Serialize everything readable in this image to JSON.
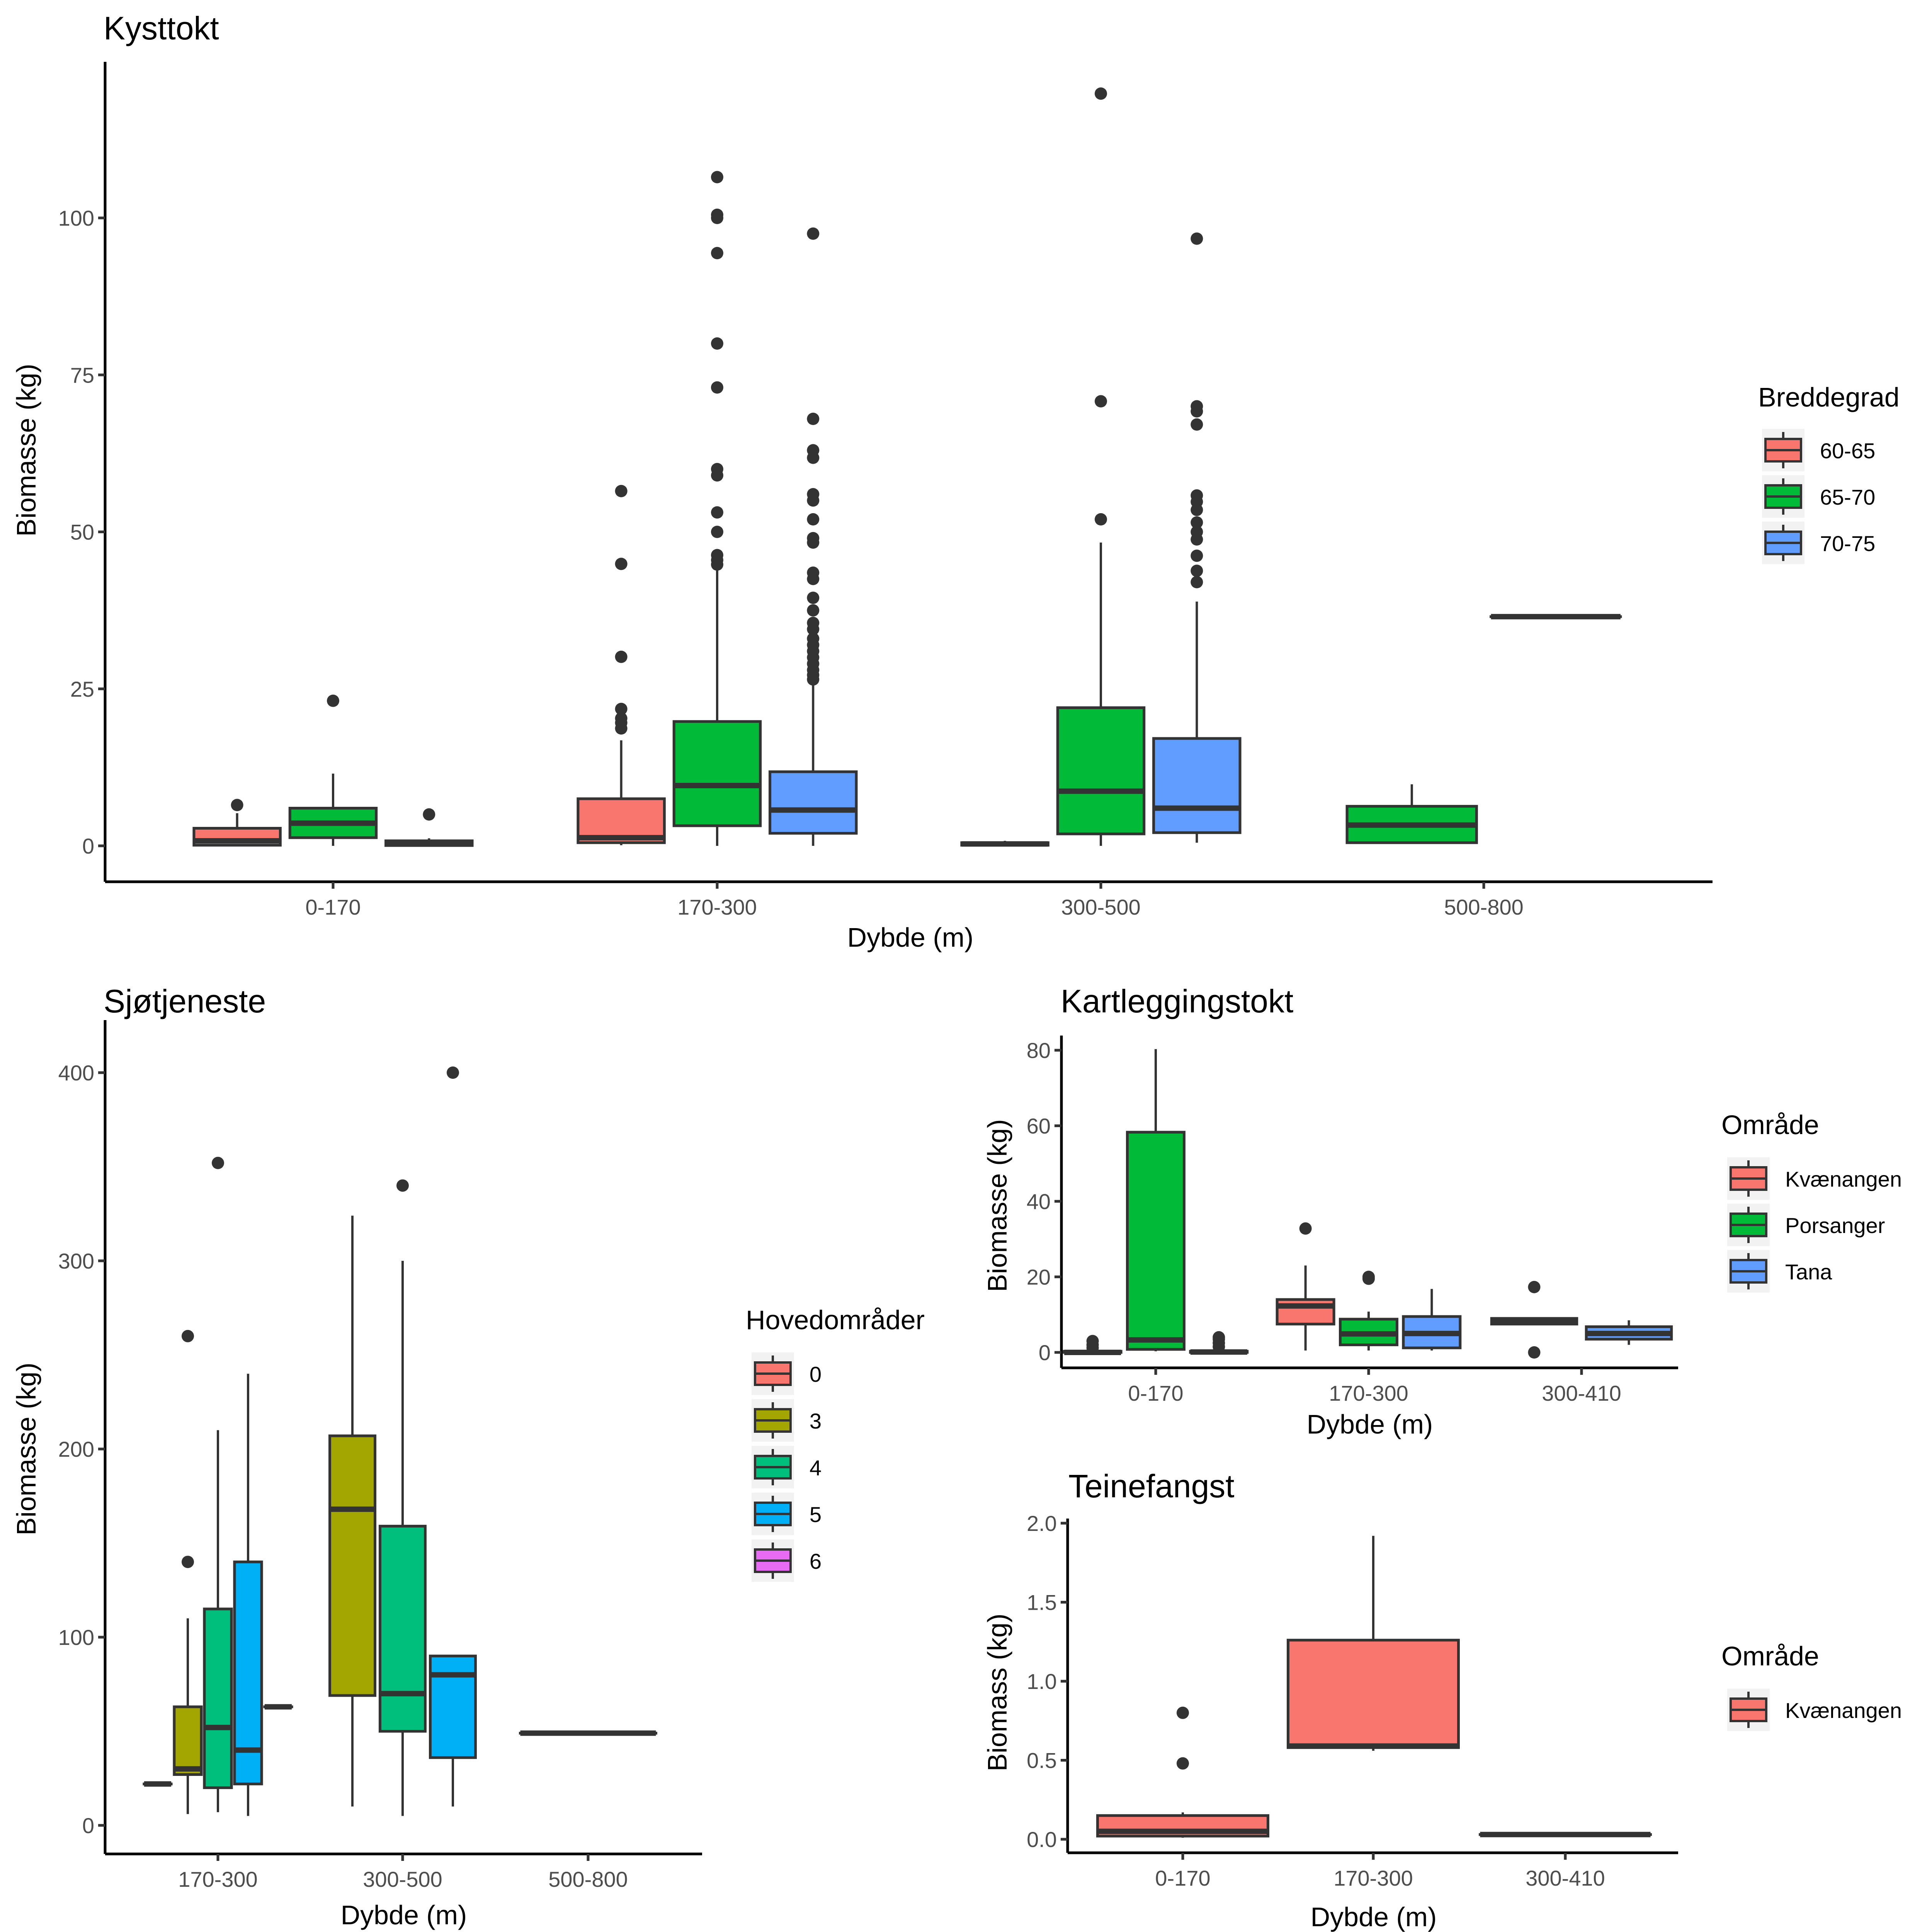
{
  "chart_data": [
    {
      "type": "box",
      "title": "Kysttokt",
      "xlabel": "Dybde (m)",
      "ylabel": "Biomasse (kg)",
      "ylim": [
        -5.5,
        124
      ],
      "yticks": [
        0,
        25,
        50,
        75,
        100
      ],
      "categories": [
        "0-170",
        "170-300",
        "300-500",
        "500-800"
      ],
      "legend": {
        "title": "Breddegrad",
        "position": "right",
        "entries": [
          {
            "label": "60-65",
            "color": "#F8766D"
          },
          {
            "label": "65-70",
            "color": "#00BA38"
          },
          {
            "label": "70-75",
            "color": "#619CFF"
          }
        ]
      },
      "groups": [
        "60-65",
        "65-70",
        "70-75"
      ],
      "boxes": [
        {
          "category": "0-170",
          "group": "60-65",
          "min": 0,
          "q1": 0.1,
          "median": 0.8,
          "q3": 2.8,
          "max": 5.2,
          "outliers": [
            6.5
          ]
        },
        {
          "category": "0-170",
          "group": "65-70",
          "min": 0,
          "q1": 1.3,
          "median": 3.6,
          "q3": 6.0,
          "max": 11.5,
          "outliers": [
            23.1
          ]
        },
        {
          "category": "0-170",
          "group": "70-75",
          "min": 0,
          "q1": 0.05,
          "median": 0.3,
          "q3": 0.8,
          "max": 1.2,
          "outliers": [
            5.0
          ]
        },
        {
          "category": "170-300",
          "group": "60-65",
          "min": 0.1,
          "q1": 0.5,
          "median": 1.3,
          "q3": 7.5,
          "max": 16.8,
          "outliers": [
            18.7,
            19.6,
            20.3,
            21.8,
            30.1,
            44.9,
            56.5
          ]
        },
        {
          "category": "170-300",
          "group": "65-70",
          "min": 0,
          "q1": 3.2,
          "median": 9.6,
          "q3": 19.8,
          "max": 44.0,
          "outliers": [
            44.8,
            45.5,
            46.3,
            50.0,
            53.1,
            59.0,
            60.0,
            73.0,
            80.0,
            94.4,
            100.0,
            100.5,
            106.5
          ]
        },
        {
          "category": "170-300",
          "group": "70-75",
          "min": 0,
          "q1": 2.0,
          "median": 5.7,
          "q3": 11.8,
          "max": 26.0,
          "outliers": [
            26.5,
            27.2,
            28.0,
            29.0,
            30.0,
            31.0,
            32.0,
            33.0,
            34.5,
            35.5,
            37.5,
            39.5,
            42.5,
            43.5,
            48.3,
            49.0,
            52.0,
            55.0,
            56.0,
            61.8,
            63.0,
            68.0,
            97.5
          ]
        },
        {
          "category": "300-500",
          "group": "60-65",
          "min": 0,
          "q1": 0.1,
          "median": 0.3,
          "q3": 0.5,
          "max": 0.8,
          "outliers": []
        },
        {
          "category": "300-500",
          "group": "65-70",
          "min": 0,
          "q1": 1.9,
          "median": 8.7,
          "q3": 22.0,
          "max": 48.3,
          "outliers": [
            52.0,
            70.8,
            119.8
          ]
        },
        {
          "category": "300-500",
          "group": "70-75",
          "min": 0.5,
          "q1": 2.1,
          "median": 6.0,
          "q3": 17.1,
          "max": 38.9,
          "outliers": [
            42.0,
            43.8,
            46.2,
            48.8,
            50.0,
            51.5,
            53.5,
            54.8,
            55.8,
            67.1,
            69.2,
            70.0,
            96.7
          ]
        },
        {
          "category": "500-800",
          "group": "65-70",
          "min": 0.5,
          "q1": 0.5,
          "median": 3.3,
          "q3": 6.3,
          "max": 9.8,
          "outliers": []
        },
        {
          "category": "500-800",
          "group": "70-75",
          "min": 36.5,
          "q1": 36.5,
          "median": 36.5,
          "q3": 36.5,
          "max": 36.5,
          "outliers": []
        }
      ]
    },
    {
      "type": "box",
      "title": "Sjøtjeneste",
      "xlabel": "Dybde (m)",
      "ylabel": "Biomasse (kg)",
      "ylim": [
        -15,
        420
      ],
      "yticks": [
        0,
        100,
        200,
        300,
        400
      ],
      "categories": [
        "170-300",
        "300-500",
        "500-800"
      ],
      "legend": {
        "title": "Hovedområder",
        "position": "right",
        "entries": [
          {
            "label": "0",
            "color": "#F8766D"
          },
          {
            "label": "3",
            "color": "#A3A500"
          },
          {
            "label": "4",
            "color": "#00BF7D"
          },
          {
            "label": "5",
            "color": "#00B0F6"
          },
          {
            "label": "6",
            "color": "#E76BF3"
          }
        ]
      },
      "groups": [
        "0",
        "3",
        "4",
        "5",
        "6"
      ],
      "boxes": [
        {
          "category": "170-300",
          "group": "0",
          "slot": 0,
          "nslots": 5,
          "min": 22,
          "q1": 22,
          "median": 22,
          "q3": 22,
          "max": 22,
          "outliers": []
        },
        {
          "category": "170-300",
          "group": "3",
          "slot": 1,
          "nslots": 5,
          "min": 6,
          "q1": 27,
          "median": 30,
          "q3": 63,
          "max": 110,
          "outliers": [
            140,
            260
          ]
        },
        {
          "category": "170-300",
          "group": "4",
          "slot": 2,
          "nslots": 5,
          "min": 7,
          "q1": 20,
          "median": 52,
          "q3": 115,
          "max": 210,
          "outliers": [
            352
          ]
        },
        {
          "category": "170-300",
          "group": "5",
          "slot": 3,
          "nslots": 5,
          "min": 5,
          "q1": 22,
          "median": 40,
          "q3": 140,
          "max": 240,
          "outliers": []
        },
        {
          "category": "170-300",
          "group": "6",
          "slot": 4,
          "nslots": 5,
          "min": 63,
          "q1": 63,
          "median": 63,
          "q3": 63,
          "max": 63,
          "outliers": []
        },
        {
          "category": "300-500",
          "group": "3",
          "slot": 0,
          "nslots": 3,
          "min": 10,
          "q1": 69,
          "median": 168,
          "q3": 207,
          "max": 324,
          "outliers": []
        },
        {
          "category": "300-500",
          "group": "4",
          "slot": 1,
          "nslots": 3,
          "min": 5,
          "q1": 50,
          "median": 70,
          "q3": 159,
          "max": 300,
          "outliers": [
            340
          ]
        },
        {
          "category": "300-500",
          "group": "5",
          "slot": 2,
          "nslots": 3,
          "min": 10,
          "q1": 36,
          "median": 80,
          "q3": 90,
          "max": 90,
          "outliers": [
            400
          ]
        },
        {
          "category": "500-800",
          "group": "4",
          "slot": 0,
          "nslots": 1,
          "min": 49,
          "q1": 49,
          "median": 49,
          "q3": 49,
          "max": 49,
          "outliers": []
        }
      ]
    },
    {
      "type": "box",
      "title": "Kartleggingstokt",
      "xlabel": "Dybde (m)",
      "ylabel": "Biomasse (kg)",
      "ylim": [
        -4,
        84
      ],
      "yticks": [
        0,
        20,
        40,
        60,
        80
      ],
      "categories": [
        "0-170",
        "170-300",
        "300-410"
      ],
      "legend": {
        "title": "Område",
        "position": "right",
        "entries": [
          {
            "label": "Kvænangen",
            "color": "#F8766D"
          },
          {
            "label": "Porsanger",
            "color": "#00BA38"
          },
          {
            "label": "Tana",
            "color": "#619CFF"
          }
        ]
      },
      "groups": [
        "Kvænangen",
        "Porsanger",
        "Tana"
      ],
      "boxes": [
        {
          "category": "0-170",
          "group": "Kvænangen",
          "slot": 0,
          "nslots": 3,
          "min": 0,
          "q1": 0,
          "median": 0,
          "q3": 0.3,
          "max": 0.8,
          "outliers": [
            1.2,
            2.0,
            3.0
          ]
        },
        {
          "category": "0-170",
          "group": "Porsanger",
          "slot": 1,
          "nslots": 3,
          "min": 0.3,
          "q1": 0.8,
          "median": 3.3,
          "q3": 58.3,
          "max": 80.3,
          "outliers": []
        },
        {
          "category": "0-170",
          "group": "Tana",
          "slot": 2,
          "nslots": 3,
          "min": 0,
          "q1": 0,
          "median": 0.1,
          "q3": 0.3,
          "max": 0.6,
          "outliers": [
            1.5,
            2.5,
            3.5,
            4.0
          ]
        },
        {
          "category": "170-300",
          "group": "Kvænangen",
          "slot": 0,
          "nslots": 3,
          "min": 0.5,
          "q1": 7.5,
          "median": 12.3,
          "q3": 14.0,
          "max": 23.0,
          "outliers": [
            32.8
          ]
        },
        {
          "category": "170-300",
          "group": "Porsanger",
          "slot": 1,
          "nslots": 3,
          "min": 0.5,
          "q1": 2.0,
          "median": 4.9,
          "q3": 8.8,
          "max": 10.8,
          "outliers": [
            19.5,
            20.0
          ]
        },
        {
          "category": "170-300",
          "group": "Tana",
          "slot": 2,
          "nslots": 3,
          "min": 0.5,
          "q1": 1.2,
          "median": 5.0,
          "q3": 9.5,
          "max": 16.8,
          "outliers": []
        },
        {
          "category": "300-410",
          "group": "Kvænangen",
          "slot": 0,
          "nslots": 2,
          "min": 7.5,
          "q1": 7.5,
          "median": 8.0,
          "q3": 9.0,
          "max": 9.0,
          "outliers": [
            0,
            17.3
          ]
        },
        {
          "category": "300-410",
          "group": "Tana",
          "slot": 1,
          "nslots": 2,
          "min": 2.0,
          "q1": 3.5,
          "median": 5.0,
          "q3": 6.8,
          "max": 8.5,
          "outliers": []
        }
      ]
    },
    {
      "type": "box",
      "title": "Teinefangst",
      "xlabel": "Dybde (m)",
      "ylabel": "Biomass (kg)",
      "ylim": [
        -0.09,
        2.04
      ],
      "yticks": [
        0.0,
        0.5,
        1.0,
        1.5,
        2.0
      ],
      "ytick_labels": [
        "0.0",
        "0.5",
        "1.0",
        "1.5",
        "2.0"
      ],
      "categories": [
        "0-170",
        "170-300",
        "300-410"
      ],
      "legend": {
        "title": "Område",
        "position": "right",
        "entries": [
          {
            "label": "Kvænangen",
            "color": "#F8766D"
          }
        ]
      },
      "groups": [
        "Kvænangen"
      ],
      "boxes": [
        {
          "category": "0-170",
          "group": "Kvænangen",
          "slot": 0,
          "nslots": 1,
          "min": 0.01,
          "q1": 0.02,
          "median": 0.05,
          "q3": 0.15,
          "max": 0.17,
          "outliers": [
            0.48,
            0.8
          ]
        },
        {
          "category": "170-300",
          "group": "Kvænangen",
          "slot": 0,
          "nslots": 1,
          "min": 0.56,
          "q1": 0.58,
          "median": 0.59,
          "q3": 1.26,
          "max": 1.92,
          "outliers": []
        },
        {
          "category": "300-410",
          "group": "Kvænangen",
          "slot": 0,
          "nslots": 1,
          "min": 0.03,
          "q1": 0.03,
          "median": 0.03,
          "q3": 0.03,
          "max": 0.03,
          "outliers": []
        }
      ]
    }
  ]
}
